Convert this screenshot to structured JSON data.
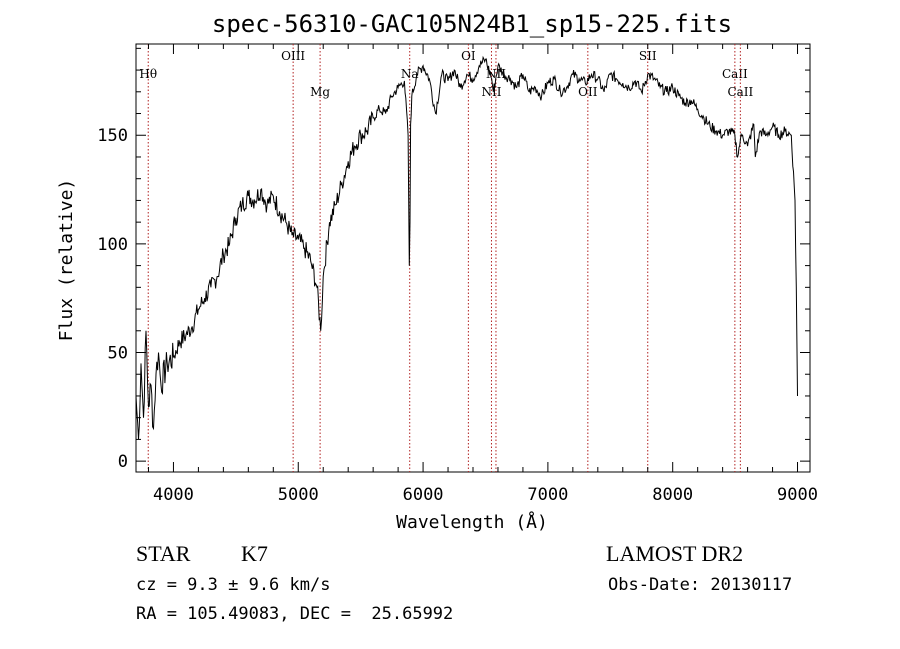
{
  "chart_data": {
    "type": "line",
    "title": "spec-56310-GAC105N24B1_sp15-225.fits",
    "xlabel": "Wavelength (Å)",
    "ylabel": "Flux (relative)",
    "xlim": [
      3700,
      9100
    ],
    "ylim": [
      -5,
      192
    ],
    "xticks": [
      4000,
      5000,
      6000,
      7000,
      8000,
      9000
    ],
    "yticks": [
      0,
      50,
      100,
      150
    ],
    "grid": false,
    "line_color": "#000000",
    "marker_color": "#b22222",
    "spectrum": {
      "x": [
        3700,
        3720,
        3740,
        3760,
        3780,
        3800,
        3820,
        3840,
        3860,
        3880,
        3900,
        3950,
        4000,
        4050,
        4100,
        4150,
        4200,
        4250,
        4300,
        4350,
        4400,
        4450,
        4500,
        4550,
        4600,
        4650,
        4700,
        4750,
        4800,
        4850,
        4900,
        4950,
        5000,
        5050,
        5100,
        5150,
        5180,
        5200,
        5250,
        5300,
        5350,
        5400,
        5450,
        5500,
        5550,
        5600,
        5650,
        5700,
        5750,
        5800,
        5850,
        5880,
        5890,
        5895,
        5900,
        5910,
        5950,
        6000,
        6050,
        6100,
        6150,
        6200,
        6250,
        6300,
        6350,
        6400,
        6450,
        6500,
        6550,
        6563,
        6600,
        6650,
        6700,
        6750,
        6800,
        6850,
        6900,
        6950,
        7000,
        7050,
        7100,
        7150,
        7200,
        7250,
        7300,
        7350,
        7400,
        7450,
        7500,
        7550,
        7600,
        7650,
        7700,
        7750,
        7800,
        7850,
        7900,
        7950,
        8000,
        8050,
        8100,
        8150,
        8200,
        8250,
        8300,
        8350,
        8400,
        8450,
        8498,
        8520,
        8542,
        8560,
        8600,
        8650,
        8662,
        8700,
        8750,
        8800,
        8850,
        8900,
        8950,
        8980,
        8990,
        9000
      ],
      "y": [
        30,
        10,
        45,
        20,
        60,
        25,
        35,
        15,
        40,
        50,
        35,
        45,
        48,
        55,
        58,
        62,
        70,
        75,
        80,
        85,
        95,
        100,
        112,
        118,
        122,
        120,
        125,
        118,
        122,
        115,
        110,
        104,
        102,
        98,
        92,
        80,
        60,
        85,
        110,
        118,
        128,
        138,
        145,
        150,
        152,
        158,
        162,
        160,
        168,
        172,
        175,
        150,
        90,
        110,
        155,
        168,
        178,
        182,
        176,
        160,
        178,
        175,
        180,
        172,
        178,
        176,
        182,
        185,
        176,
        170,
        182,
        178,
        176,
        172,
        178,
        170,
        172,
        168,
        174,
        176,
        170,
        172,
        178,
        176,
        174,
        178,
        176,
        170,
        178,
        176,
        174,
        172,
        175,
        170,
        178,
        176,
        172,
        170,
        172,
        168,
        165,
        166,
        162,
        158,
        154,
        152,
        150,
        152,
        150,
        140,
        148,
        150,
        145,
        155,
        140,
        152,
        150,
        154,
        150,
        152,
        150,
        120,
        80,
        30
      ],
      "absorption_lines": [
        {
          "label": "Hθ",
          "x": 3798
        },
        {
          "label": "OIII",
          "x": 4959
        },
        {
          "label": "Mg",
          "x": 5175
        },
        {
          "label": "Na",
          "x": 5893
        },
        {
          "label": "OI",
          "x": 6363
        },
        {
          "label": "NII",
          "x": 6548
        },
        {
          "label": "NII",
          "x": 6584
        },
        {
          "label": "OII",
          "x": 7320
        },
        {
          "label": "SII",
          "x": 7800
        },
        {
          "label": "CaII",
          "x": 8498
        },
        {
          "label": "CaII",
          "x": 8542
        }
      ]
    }
  },
  "info": {
    "object_class": "STAR",
    "subclass": "K7",
    "cz": "cz = 9.3 ± 9.6 km/s",
    "coords": "RA = 105.49083, DEC =  25.65992",
    "survey": "LAMOST DR2",
    "obs_date": "Obs-Date: 20130117"
  }
}
